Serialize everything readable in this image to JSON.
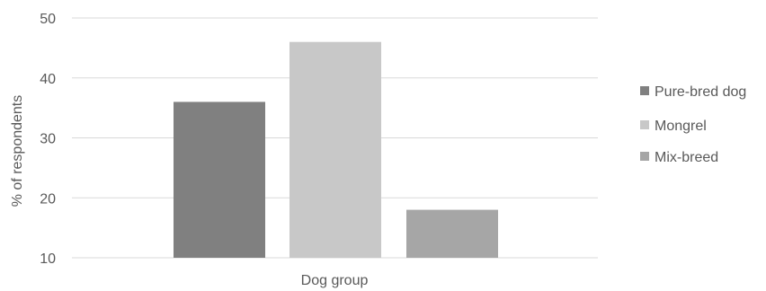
{
  "chart_data": {
    "type": "bar",
    "xlabel": "Dog group",
    "ylabel": "% of respondents",
    "ylim": [
      10,
      50
    ],
    "yticks": [
      10,
      20,
      30,
      40,
      50
    ],
    "grid": true,
    "legend_position": "right",
    "series": [
      {
        "name": "Pure-bred dog",
        "value": 36,
        "color": "#808080"
      },
      {
        "name": "Mongrel",
        "value": 46,
        "color": "#c8c8c8"
      },
      {
        "name": "Mix-breed",
        "value": 18,
        "color": "#a6a6a6"
      }
    ]
  }
}
